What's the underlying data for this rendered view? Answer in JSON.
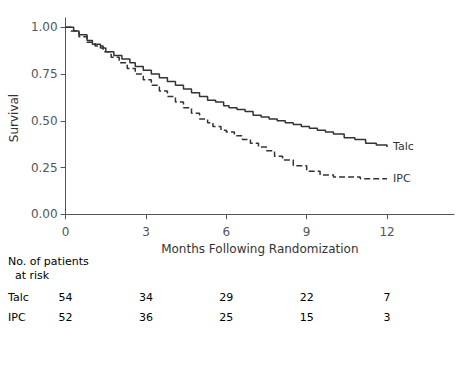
{
  "chart_data": {
    "type": "line",
    "xlabel": "Months Following Randomization",
    "ylabel": "Survival",
    "xlim": [
      0,
      14.5
    ],
    "xticks": [
      0,
      3,
      6,
      9,
      12
    ],
    "ylim": [
      -0.02,
      1.05
    ],
    "yticks": [
      {
        "value": 0.0,
        "label": "0.00"
      },
      {
        "value": 0.25,
        "label": "0.25"
      },
      {
        "value": 0.5,
        "label": "0.50"
      },
      {
        "value": 0.75,
        "label": "0.75"
      },
      {
        "value": 1.0,
        "label": "1.00"
      }
    ],
    "grid": false,
    "color": "#333333",
    "series": [
      {
        "name": "Talc",
        "line_style": "solid",
        "x": [
          0,
          0.3,
          0.5,
          0.8,
          1.0,
          1.3,
          1.5,
          1.8,
          2.1,
          2.4,
          2.6,
          2.9,
          3.2,
          3.5,
          3.8,
          4.1,
          4.4,
          4.7,
          5.0,
          5.3,
          5.6,
          5.9,
          6.1,
          6.4,
          6.7,
          7.0,
          7.3,
          7.6,
          7.9,
          8.2,
          8.5,
          8.8,
          9.1,
          9.4,
          9.7,
          10.0,
          10.4,
          10.8,
          11.2,
          11.6,
          12.0
        ],
        "values": [
          1.0,
          0.98,
          0.96,
          0.93,
          0.91,
          0.89,
          0.87,
          0.85,
          0.83,
          0.81,
          0.79,
          0.77,
          0.75,
          0.73,
          0.71,
          0.69,
          0.67,
          0.65,
          0.63,
          0.61,
          0.6,
          0.58,
          0.57,
          0.56,
          0.55,
          0.53,
          0.52,
          0.51,
          0.5,
          0.49,
          0.48,
          0.47,
          0.46,
          0.45,
          0.44,
          0.43,
          0.41,
          0.4,
          0.38,
          0.37,
          0.36
        ]
      },
      {
        "name": "IPC",
        "line_style": "dashed",
        "x": [
          0,
          0.2,
          0.5,
          0.8,
          1.1,
          1.4,
          1.7,
          2.0,
          2.3,
          2.6,
          2.9,
          3.2,
          3.5,
          3.8,
          4.1,
          4.4,
          4.7,
          5.0,
          5.3,
          5.5,
          5.8,
          6.0,
          6.3,
          6.6,
          6.9,
          7.2,
          7.5,
          7.8,
          8.1,
          8.5,
          9.0,
          9.5,
          10.0,
          10.5,
          11.0,
          11.5,
          12.0
        ],
        "values": [
          1.0,
          0.98,
          0.95,
          0.92,
          0.9,
          0.87,
          0.84,
          0.81,
          0.78,
          0.75,
          0.72,
          0.69,
          0.66,
          0.63,
          0.6,
          0.57,
          0.54,
          0.51,
          0.49,
          0.47,
          0.45,
          0.44,
          0.42,
          0.4,
          0.38,
          0.36,
          0.34,
          0.31,
          0.29,
          0.26,
          0.23,
          0.21,
          0.2,
          0.2,
          0.19,
          0.19,
          0.19
        ]
      }
    ],
    "at_risk": {
      "header": [
        "No. of patients",
        "  at risk"
      ],
      "x": [
        0,
        3,
        6,
        9,
        12
      ],
      "rows": [
        {
          "label": "Talc",
          "values": [
            54,
            34,
            29,
            22,
            7
          ]
        },
        {
          "label": "IPC",
          "values": [
            52,
            36,
            25,
            15,
            3
          ]
        }
      ]
    }
  }
}
